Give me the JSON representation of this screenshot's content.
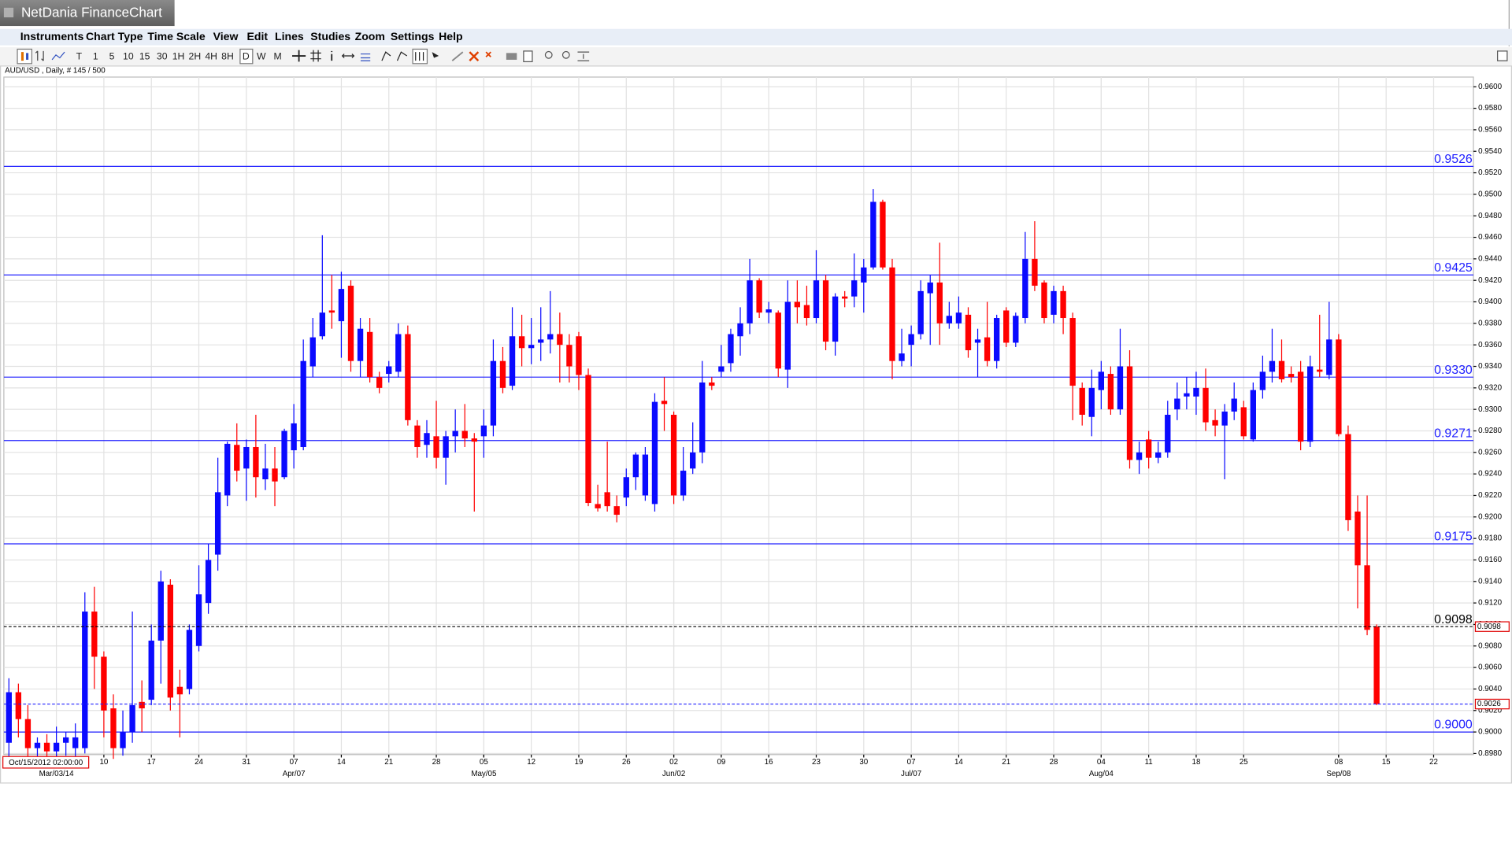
{
  "window": {
    "title": "NetDania FinanceChart"
  },
  "menu": [
    "Instruments",
    "Chart Type",
    "Time Scale",
    "View",
    "Edit",
    "Lines",
    "Studies",
    "Zoom",
    "Settings",
    "Help"
  ],
  "toolbar": {
    "timeframes": [
      "T",
      "1",
      "5",
      "10",
      "15",
      "30",
      "1H",
      "2H",
      "4H",
      "8H",
      "D",
      "W",
      "M"
    ]
  },
  "chart_data": {
    "type": "candlestick",
    "subtitle": "AUD/USD , Daily, # 145 / 500",
    "cursor_label": "Oct/15/2012 02:00:00",
    "up_color": "#0a0aff",
    "down_color": "#ff0000",
    "grid": true,
    "open": [
      0.899,
      0.9037,
      0.9012,
      0.8985,
      0.899,
      0.8982,
      0.899,
      0.8985,
      0.8985,
      0.9112,
      0.907,
      0.9022,
      0.8985,
      0.9,
      0.9028,
      0.903,
      0.9085,
      0.9137,
      0.9042,
      0.904,
      0.908,
      0.912,
      0.9165,
      0.922,
      0.9267,
      0.9245,
      0.9265,
      0.9235,
      0.9245,
      0.9237,
      0.9262,
      0.9265,
      0.934,
      0.9368,
      0.9392,
      0.9382,
      0.9415,
      0.9345,
      0.9372,
      0.933,
      0.9333,
      0.9335,
      0.937,
      0.9285,
      0.9267,
      0.9275,
      0.9255,
      0.9275,
      0.928,
      0.9273,
      0.9275,
      0.9285,
      0.9345,
      0.9322,
      0.9368,
      0.9357,
      0.9362,
      0.9365,
      0.937,
      0.936,
      0.9368,
      0.9332,
      0.9212,
      0.9223,
      0.921,
      0.9218,
      0.9237,
      0.922,
      0.9212,
      0.9308,
      0.9295,
      0.922,
      0.9245,
      0.926,
      0.9325,
      0.9335,
      0.9343,
      0.9368,
      0.938,
      0.942,
      0.939,
      0.939,
      0.9337,
      0.94,
      0.9397,
      0.9385,
      0.942,
      0.9363,
      0.9405,
      0.9405,
      0.9418,
      0.9432,
      0.9493,
      0.9432,
      0.9345,
      0.936,
      0.937,
      0.9408,
      0.9418,
      0.938,
      0.938,
      0.9388,
      0.9362,
      0.9367,
      0.9345,
      0.9392,
      0.9362,
      0.9385,
      0.944,
      0.9418,
      0.9388,
      0.941,
      0.9385,
      0.932,
      0.9293,
      0.9318,
      0.9333,
      0.93,
      0.934,
      0.9253,
      0.9272,
      0.9255,
      0.926,
      0.93,
      0.9312,
      0.9312,
      0.932,
      0.929,
      0.9285,
      0.9298,
      0.9302,
      0.9272,
      0.9318,
      0.9335,
      0.9345,
      0.9333,
      0.9335,
      0.927,
      0.9337,
      0.9332,
      0.9365,
      0.9277,
      0.9205,
      0.9155,
      0.9098
    ],
    "high": [
      0.905,
      0.9045,
      0.9025,
      0.8995,
      0.8998,
      0.9005,
      0.9,
      0.9008,
      0.913,
      0.9135,
      0.9075,
      0.9035,
      0.902,
      0.9112,
      0.9048,
      0.91,
      0.915,
      0.9142,
      0.9058,
      0.91,
      0.9155,
      0.9175,
      0.9255,
      0.927,
      0.9287,
      0.9272,
      0.9295,
      0.9268,
      0.9265,
      0.9282,
      0.9305,
      0.9365,
      0.9385,
      0.9462,
      0.9425,
      0.9428,
      0.942,
      0.9385,
      0.9385,
      0.9335,
      0.9345,
      0.938,
      0.9378,
      0.929,
      0.929,
      0.9308,
      0.928,
      0.93,
      0.9305,
      0.9278,
      0.93,
      0.9365,
      0.9358,
      0.9395,
      0.9388,
      0.9385,
      0.9395,
      0.941,
      0.939,
      0.937,
      0.9372,
      0.9338,
      0.923,
      0.927,
      0.922,
      0.9245,
      0.926,
      0.9265,
      0.9315,
      0.933,
      0.9298,
      0.9265,
      0.9288,
      0.9345,
      0.933,
      0.936,
      0.9375,
      0.9395,
      0.944,
      0.9422,
      0.94,
      0.9392,
      0.942,
      0.942,
      0.9415,
      0.9448,
      0.9425,
      0.9408,
      0.941,
      0.9445,
      0.944,
      0.9505,
      0.9495,
      0.944,
      0.9375,
      0.9378,
      0.942,
      0.9425,
      0.9455,
      0.94,
      0.9405,
      0.9395,
      0.9375,
      0.94,
      0.9388,
      0.9395,
      0.939,
      0.9465,
      0.9475,
      0.942,
      0.9415,
      0.9415,
      0.939,
      0.9325,
      0.9337,
      0.9345,
      0.934,
      0.9375,
      0.9355,
      0.927,
      0.928,
      0.927,
      0.9308,
      0.9325,
      0.933,
      0.9335,
      0.9338,
      0.93,
      0.9305,
      0.9325,
      0.9308,
      0.9325,
      0.935,
      0.9375,
      0.9365,
      0.934,
      0.9345,
      0.935,
      0.9388,
      0.94,
      0.937,
      0.9285,
      0.922,
      0.922,
      0.91
    ],
    "low": [
      0.8975,
      0.8995,
      0.8975,
      0.8975,
      0.8975,
      0.8975,
      0.8978,
      0.8975,
      0.898,
      0.904,
      0.8995,
      0.8975,
      0.8978,
      0.899,
      0.9,
      0.9025,
      0.9045,
      0.902,
      0.8995,
      0.9035,
      0.9075,
      0.911,
      0.915,
      0.921,
      0.9233,
      0.9215,
      0.9218,
      0.9225,
      0.921,
      0.9235,
      0.9245,
      0.9262,
      0.933,
      0.9365,
      0.9375,
      0.9348,
      0.9335,
      0.933,
      0.9325,
      0.9315,
      0.9325,
      0.933,
      0.9285,
      0.9255,
      0.9255,
      0.9245,
      0.923,
      0.926,
      0.9265,
      0.9205,
      0.9255,
      0.9275,
      0.9315,
      0.9318,
      0.934,
      0.9342,
      0.9345,
      0.9352,
      0.9325,
      0.9325,
      0.9318,
      0.921,
      0.9205,
      0.9205,
      0.9195,
      0.921,
      0.9225,
      0.9215,
      0.9205,
      0.928,
      0.9212,
      0.9215,
      0.924,
      0.925,
      0.9318,
      0.933,
      0.9335,
      0.935,
      0.937,
      0.9385,
      0.938,
      0.933,
      0.932,
      0.938,
      0.9378,
      0.938,
      0.9355,
      0.935,
      0.9395,
      0.9395,
      0.939,
      0.943,
      0.943,
      0.9328,
      0.934,
      0.934,
      0.9365,
      0.936,
      0.936,
      0.9375,
      0.9375,
      0.9348,
      0.933,
      0.934,
      0.9338,
      0.9358,
      0.9358,
      0.938,
      0.941,
      0.938,
      0.938,
      0.937,
      0.929,
      0.9285,
      0.9275,
      0.93,
      0.9295,
      0.9295,
      0.9245,
      0.924,
      0.9245,
      0.925,
      0.9255,
      0.929,
      0.93,
      0.9295,
      0.928,
      0.9275,
      0.9235,
      0.929,
      0.9272,
      0.927,
      0.931,
      0.9325,
      0.9325,
      0.9325,
      0.9262,
      0.9265,
      0.933,
      0.9328,
      0.9275,
      0.9187,
      0.9115,
      0.909,
      0.9025
    ],
    "close": [
      0.9037,
      0.9012,
      0.8985,
      0.899,
      0.8982,
      0.899,
      0.8995,
      0.8995,
      0.9112,
      0.907,
      0.902,
      0.8985,
      0.9,
      0.9025,
      0.9022,
      0.9085,
      0.914,
      0.9032,
      0.9035,
      0.9095,
      0.9128,
      0.916,
      0.9223,
      0.9268,
      0.9243,
      0.9265,
      0.9237,
      0.9245,
      0.9233,
      0.928,
      0.9287,
      0.9345,
      0.9367,
      0.939,
      0.939,
      0.9412,
      0.9345,
      0.9375,
      0.933,
      0.932,
      0.934,
      0.937,
      0.929,
      0.9265,
      0.9278,
      0.9255,
      0.9275,
      0.928,
      0.9273,
      0.927,
      0.9285,
      0.9345,
      0.932,
      0.9368,
      0.9357,
      0.936,
      0.9365,
      0.937,
      0.936,
      0.934,
      0.9332,
      0.9213,
      0.9208,
      0.921,
      0.9202,
      0.9237,
      0.9258,
      0.9258,
      0.9307,
      0.9305,
      0.922,
      0.9243,
      0.926,
      0.9325,
      0.9322,
      0.934,
      0.937,
      0.938,
      0.942,
      0.939,
      0.9393,
      0.9338,
      0.94,
      0.9395,
      0.9385,
      0.942,
      0.9363,
      0.9405,
      0.9403,
      0.942,
      0.9432,
      0.9493,
      0.9432,
      0.9345,
      0.9352,
      0.937,
      0.941,
      0.9418,
      0.938,
      0.9387,
      0.939,
      0.9355,
      0.9365,
      0.9345,
      0.9385,
      0.9362,
      0.9387,
      0.944,
      0.9415,
      0.9385,
      0.941,
      0.9385,
      0.9322,
      0.9295,
      0.932,
      0.9335,
      0.93,
      0.934,
      0.9253,
      0.926,
      0.9255,
      0.926,
      0.9295,
      0.931,
      0.9315,
      0.932,
      0.9288,
      0.9285,
      0.9298,
      0.931,
      0.9275,
      0.9318,
      0.9335,
      0.9345,
      0.9328,
      0.933,
      0.927,
      0.934,
      0.9335,
      0.9365,
      0.9277,
      0.9197,
      0.9155,
      0.9095,
      0.9026
    ],
    "xlim": [
      -0.53,
      154.19
    ],
    "xticks": [
      {
        "value": 10,
        "label": "10"
      },
      {
        "value": 15,
        "label": "17"
      },
      {
        "value": 20,
        "label": "24"
      },
      {
        "value": 25,
        "label": "31"
      },
      {
        "value": 30,
        "label": "07"
      },
      {
        "value": 35,
        "label": "14"
      },
      {
        "value": 40,
        "label": "21"
      },
      {
        "value": 45,
        "label": "28"
      },
      {
        "value": 50,
        "label": "05"
      },
      {
        "value": 55,
        "label": "12"
      },
      {
        "value": 60,
        "label": "19"
      },
      {
        "value": 65,
        "label": "26"
      },
      {
        "value": 70,
        "label": "02"
      },
      {
        "value": 75,
        "label": "09"
      },
      {
        "value": 80,
        "label": "16"
      },
      {
        "value": 85,
        "label": "23"
      },
      {
        "value": 90,
        "label": "30"
      },
      {
        "value": 95,
        "label": "07"
      },
      {
        "value": 100,
        "label": "14"
      },
      {
        "value": 105,
        "label": "21"
      },
      {
        "value": 110,
        "label": "28"
      },
      {
        "value": 115,
        "label": "04"
      },
      {
        "value": 120,
        "label": "11"
      },
      {
        "value": 125,
        "label": "18"
      },
      {
        "value": 130,
        "label": "25"
      },
      {
        "value": 140,
        "label": "08"
      },
      {
        "value": 145,
        "label": "15"
      },
      {
        "value": 150,
        "label": "22"
      }
    ],
    "xticks_month": [
      {
        "value": 5,
        "label": "Mar/03/14"
      },
      {
        "value": 30,
        "label": "Apr/07"
      },
      {
        "value": 50,
        "label": "May/05"
      },
      {
        "value": 70,
        "label": "Jun/02"
      },
      {
        "value": 95,
        "label": "Jul/07"
      },
      {
        "value": 115,
        "label": "Aug/04"
      },
      {
        "value": 140,
        "label": "Sep/08"
      }
    ],
    "ylim": [
      0.8979,
      0.9609
    ],
    "yticks": [
      {
        "value": 0.898,
        "label": "0.8980"
      },
      {
        "value": 0.9,
        "label": "0.9000"
      },
      {
        "value": 0.902,
        "label": "0.9020"
      },
      {
        "value": 0.904,
        "label": "0.9040"
      },
      {
        "value": 0.906,
        "label": "0.9060"
      },
      {
        "value": 0.908,
        "label": "0.9080"
      },
      {
        "value": 0.91,
        "label": "0.9100"
      },
      {
        "value": 0.912,
        "label": "0.9120"
      },
      {
        "value": 0.914,
        "label": "0.9140"
      },
      {
        "value": 0.916,
        "label": "0.9160"
      },
      {
        "value": 0.918,
        "label": "0.9180"
      },
      {
        "value": 0.92,
        "label": "0.9200"
      },
      {
        "value": 0.922,
        "label": "0.9220"
      },
      {
        "value": 0.924,
        "label": "0.9240"
      },
      {
        "value": 0.926,
        "label": "0.9260"
      },
      {
        "value": 0.928,
        "label": "0.9280"
      },
      {
        "value": 0.93,
        "label": "0.9300"
      },
      {
        "value": 0.932,
        "label": "0.9320"
      },
      {
        "value": 0.934,
        "label": "0.9340"
      },
      {
        "value": 0.936,
        "label": "0.9360"
      },
      {
        "value": 0.938,
        "label": "0.9380"
      },
      {
        "value": 0.94,
        "label": "0.9400"
      },
      {
        "value": 0.942,
        "label": "0.9420"
      },
      {
        "value": 0.944,
        "label": "0.9440"
      },
      {
        "value": 0.946,
        "label": "0.9460"
      },
      {
        "value": 0.948,
        "label": "0.9480"
      },
      {
        "value": 0.95,
        "label": "0.9500"
      },
      {
        "value": 0.952,
        "label": "0.9520"
      },
      {
        "value": 0.954,
        "label": "0.9540"
      },
      {
        "value": 0.956,
        "label": "0.9560"
      },
      {
        "value": 0.958,
        "label": "0.9580"
      },
      {
        "value": 0.96,
        "label": "0.9600"
      }
    ],
    "level_color": "#2020ff",
    "levels": [
      {
        "value": 0.9526,
        "label": "0.9526"
      },
      {
        "value": 0.9425,
        "label": "0.9425"
      },
      {
        "value": 0.933,
        "label": "0.9330"
      },
      {
        "value": 0.9271,
        "label": "0.9271"
      },
      {
        "value": 0.9175,
        "label": "0.9175"
      },
      {
        "value": 0.9,
        "label": "0.9000"
      }
    ],
    "price_lines": [
      {
        "value": 0.9098,
        "label": "0.9098",
        "color": "#000000",
        "show_label": true
      },
      {
        "value": 0.9026,
        "label": "0.9026",
        "color": "#2020ff",
        "show_label": false
      }
    ]
  }
}
